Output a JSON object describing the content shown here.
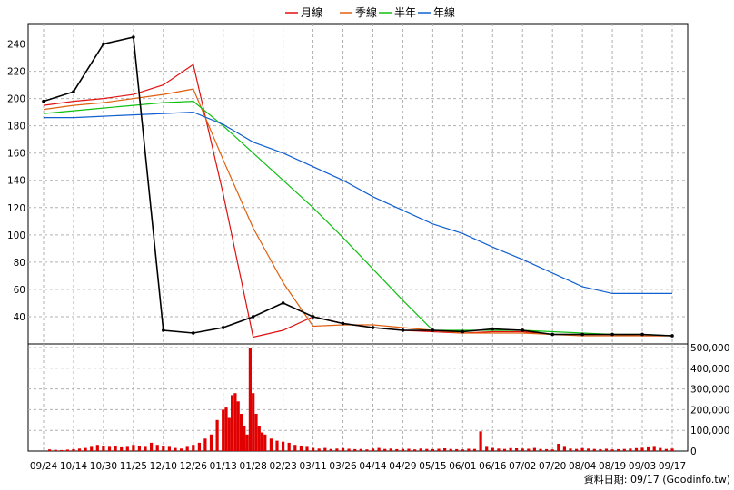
{
  "chart_data": {
    "type": "candlestick+volume",
    "legend": [
      {
        "name": "月線",
        "color": "#e01010"
      },
      {
        "name": "季線",
        "color": "#e06010"
      },
      {
        "name": "半年",
        "color": "#10c010"
      },
      {
        "name": "年線",
        "color": "#1060d0"
      }
    ],
    "x_ticks": [
      "09/24",
      "10/14",
      "10/30",
      "11/25",
      "12/10",
      "12/26",
      "01/13",
      "01/28",
      "02/23",
      "03/11",
      "03/26",
      "04/14",
      "04/29",
      "05/15",
      "06/01",
      "06/16",
      "07/02",
      "07/20",
      "08/04",
      "08/19",
      "09/03",
      "09/17"
    ],
    "price_axis": {
      "ticks": [
        40,
        60,
        80,
        100,
        120,
        140,
        160,
        180,
        200,
        220,
        240
      ],
      "ylim": [
        20,
        255
      ]
    },
    "volume_axis": {
      "ticks": [
        "0",
        "100,000",
        "200,000",
        "300,000",
        "400,000",
        "500,000"
      ],
      "ylim": [
        0,
        500000
      ]
    },
    "ma_lines": {
      "月線": [
        [
          0,
          195
        ],
        [
          1,
          198
        ],
        [
          2,
          200
        ],
        [
          3,
          203
        ],
        [
          4,
          210
        ],
        [
          5,
          225
        ],
        [
          6,
          130
        ],
        [
          7,
          25
        ],
        [
          8,
          30
        ],
        [
          9,
          40
        ],
        [
          10,
          35
        ],
        [
          11,
          32
        ],
        [
          12,
          30
        ],
        [
          13,
          29
        ],
        [
          14,
          28
        ],
        [
          15,
          29
        ],
        [
          16,
          29
        ],
        [
          17,
          27
        ],
        [
          18,
          27
        ],
        [
          19,
          27
        ],
        [
          20,
          26
        ],
        [
          21,
          26
        ]
      ],
      "季線": [
        [
          0,
          192
        ],
        [
          1,
          195
        ],
        [
          2,
          197
        ],
        [
          3,
          200
        ],
        [
          4,
          203
        ],
        [
          5,
          207
        ],
        [
          6,
          155
        ],
        [
          7,
          105
        ],
        [
          8,
          65
        ],
        [
          9,
          33
        ],
        [
          10,
          34
        ],
        [
          11,
          34
        ],
        [
          12,
          32
        ],
        [
          13,
          30
        ],
        [
          14,
          28
        ],
        [
          15,
          28
        ],
        [
          16,
          28
        ],
        [
          17,
          27
        ],
        [
          18,
          26
        ],
        [
          19,
          26
        ],
        [
          20,
          26
        ],
        [
          21,
          26
        ]
      ],
      "半年": [
        [
          0,
          189
        ],
        [
          1,
          191
        ],
        [
          2,
          193
        ],
        [
          3,
          195
        ],
        [
          4,
          197
        ],
        [
          5,
          198
        ],
        [
          6,
          180
        ],
        [
          7,
          160
        ],
        [
          8,
          140
        ],
        [
          9,
          120
        ],
        [
          10,
          98
        ],
        [
          11,
          75
        ],
        [
          12,
          52
        ],
        [
          13,
          30
        ],
        [
          14,
          30
        ],
        [
          15,
          30
        ],
        [
          16,
          30
        ],
        [
          17,
          29
        ],
        [
          18,
          28
        ],
        [
          19,
          27
        ],
        [
          20,
          27
        ],
        [
          21,
          26
        ]
      ],
      "年線": [
        [
          0,
          186
        ],
        [
          1,
          186
        ],
        [
          2,
          187
        ],
        [
          3,
          188
        ],
        [
          4,
          189
        ],
        [
          5,
          190
        ],
        [
          6,
          181
        ],
        [
          7,
          168
        ],
        [
          8,
          160
        ],
        [
          9,
          150
        ],
        [
          10,
          140
        ],
        [
          11,
          128
        ],
        [
          12,
          118
        ],
        [
          13,
          108
        ],
        [
          14,
          101
        ],
        [
          15,
          91
        ],
        [
          16,
          82
        ],
        [
          17,
          72
        ],
        [
          18,
          62
        ],
        [
          19,
          57
        ],
        [
          20,
          57
        ],
        [
          21,
          57
        ]
      ]
    },
    "price_series": [
      [
        0,
        198
      ],
      [
        1,
        205
      ],
      [
        2,
        240
      ],
      [
        3,
        245
      ],
      [
        4,
        30
      ],
      [
        5,
        28
      ],
      [
        6,
        32
      ],
      [
        7,
        40
      ],
      [
        8,
        50
      ],
      [
        9,
        40
      ],
      [
        10,
        35
      ],
      [
        11,
        32
      ],
      [
        12,
        30
      ],
      [
        13,
        30
      ],
      [
        14,
        29
      ],
      [
        15,
        31
      ],
      [
        16,
        30
      ],
      [
        17,
        27
      ],
      [
        18,
        27
      ],
      [
        19,
        27
      ],
      [
        20,
        27
      ],
      [
        21,
        26
      ]
    ],
    "volume": [
      [
        0.2,
        8000
      ],
      [
        0.4,
        6000
      ],
      [
        0.6,
        5000
      ],
      [
        0.8,
        7000
      ],
      [
        1.0,
        9000
      ],
      [
        1.2,
        12000
      ],
      [
        1.4,
        15000
      ],
      [
        1.6,
        20000
      ],
      [
        1.8,
        30000
      ],
      [
        2.0,
        25000
      ],
      [
        2.2,
        20000
      ],
      [
        2.4,
        22000
      ],
      [
        2.6,
        18000
      ],
      [
        2.8,
        20000
      ],
      [
        3.0,
        30000
      ],
      [
        3.2,
        25000
      ],
      [
        3.4,
        20000
      ],
      [
        3.6,
        40000
      ],
      [
        3.8,
        30000
      ],
      [
        4.0,
        25000
      ],
      [
        4.2,
        20000
      ],
      [
        4.4,
        15000
      ],
      [
        4.6,
        12000
      ],
      [
        4.8,
        20000
      ],
      [
        5.0,
        30000
      ],
      [
        5.2,
        40000
      ],
      [
        5.4,
        60000
      ],
      [
        5.6,
        80000
      ],
      [
        5.8,
        150000
      ],
      [
        6.0,
        200000
      ],
      [
        6.1,
        210000
      ],
      [
        6.2,
        160000
      ],
      [
        6.3,
        270000
      ],
      [
        6.4,
        280000
      ],
      [
        6.5,
        240000
      ],
      [
        6.6,
        180000
      ],
      [
        6.7,
        120000
      ],
      [
        6.8,
        80000
      ],
      [
        6.9,
        500000
      ],
      [
        7.0,
        280000
      ],
      [
        7.1,
        180000
      ],
      [
        7.2,
        120000
      ],
      [
        7.3,
        90000
      ],
      [
        7.4,
        80000
      ],
      [
        7.6,
        60000
      ],
      [
        7.8,
        50000
      ],
      [
        8.0,
        45000
      ],
      [
        8.2,
        40000
      ],
      [
        8.4,
        30000
      ],
      [
        8.6,
        25000
      ],
      [
        8.8,
        20000
      ],
      [
        9.0,
        15000
      ],
      [
        9.2,
        12000
      ],
      [
        9.4,
        15000
      ],
      [
        9.6,
        10000
      ],
      [
        9.8,
        12000
      ],
      [
        10.0,
        14000
      ],
      [
        10.2,
        11000
      ],
      [
        10.4,
        9000
      ],
      [
        10.6,
        10000
      ],
      [
        10.8,
        8000
      ],
      [
        11.0,
        12000
      ],
      [
        11.2,
        15000
      ],
      [
        11.4,
        10000
      ],
      [
        11.6,
        12000
      ],
      [
        11.8,
        9000
      ],
      [
        12.0,
        10000
      ],
      [
        12.2,
        11000
      ],
      [
        12.4,
        8000
      ],
      [
        12.6,
        12000
      ],
      [
        12.8,
        10000
      ],
      [
        13.0,
        9000
      ],
      [
        13.2,
        11000
      ],
      [
        13.4,
        13000
      ],
      [
        13.6,
        10000
      ],
      [
        13.8,
        9000
      ],
      [
        14.0,
        8000
      ],
      [
        14.2,
        11000
      ],
      [
        14.4,
        10000
      ],
      [
        14.6,
        95000
      ],
      [
        14.8,
        20000
      ],
      [
        15.0,
        15000
      ],
      [
        15.2,
        12000
      ],
      [
        15.4,
        10000
      ],
      [
        15.6,
        14000
      ],
      [
        15.8,
        13000
      ],
      [
        16.0,
        12000
      ],
      [
        16.2,
        11000
      ],
      [
        16.4,
        15000
      ],
      [
        16.6,
        10000
      ],
      [
        16.8,
        9000
      ],
      [
        17.0,
        8000
      ],
      [
        17.2,
        35000
      ],
      [
        17.4,
        20000
      ],
      [
        17.6,
        12000
      ],
      [
        17.8,
        10000
      ],
      [
        18.0,
        14000
      ],
      [
        18.2,
        12000
      ],
      [
        18.4,
        10000
      ],
      [
        18.6,
        9000
      ],
      [
        18.8,
        11000
      ],
      [
        19.0,
        8000
      ],
      [
        19.2,
        9000
      ],
      [
        19.4,
        10000
      ],
      [
        19.6,
        12000
      ],
      [
        19.8,
        14000
      ],
      [
        20.0,
        16000
      ],
      [
        20.2,
        18000
      ],
      [
        20.4,
        20000
      ],
      [
        20.6,
        15000
      ],
      [
        20.8,
        10000
      ],
      [
        21.0,
        12000
      ]
    ],
    "credit": "資料日期: 09/17  (Goodinfo.tw)"
  }
}
